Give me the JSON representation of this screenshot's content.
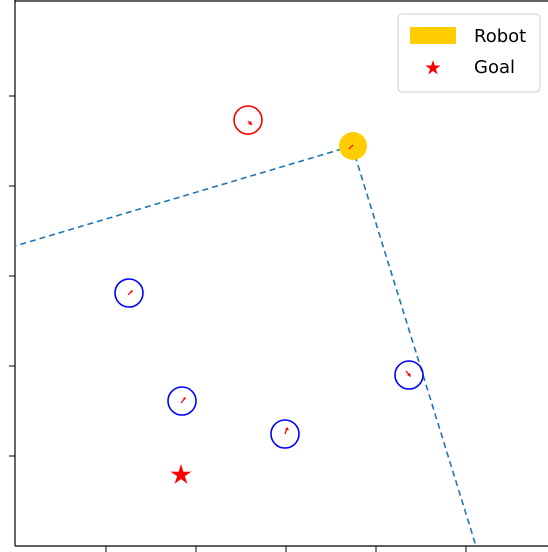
{
  "scene": {
    "legend": {
      "placement": "top-right",
      "entries": [
        {
          "label": "Robot",
          "marker": "filled-rectangle",
          "color": "#ffcc00"
        },
        {
          "label": "Goal",
          "marker": "star",
          "color": "#ff0000"
        }
      ]
    },
    "colors": {
      "robot": "#ffcc00",
      "goal": "#ff0000",
      "human_in_view": "#0000ff",
      "human_out_of_view": "#ff0000",
      "heading_arrow": "#ff0000",
      "view_cone": "#1f77b4"
    },
    "grid": false,
    "robot": {
      "name": "robot"
    },
    "goal": {
      "name": "goal"
    },
    "humans": [
      {
        "name": "human-1",
        "in_view": false
      },
      {
        "name": "human-2",
        "in_view": true
      },
      {
        "name": "human-3",
        "in_view": true
      },
      {
        "name": "human-4",
        "in_view": true
      },
      {
        "name": "human-5",
        "in_view": true
      }
    ]
  }
}
